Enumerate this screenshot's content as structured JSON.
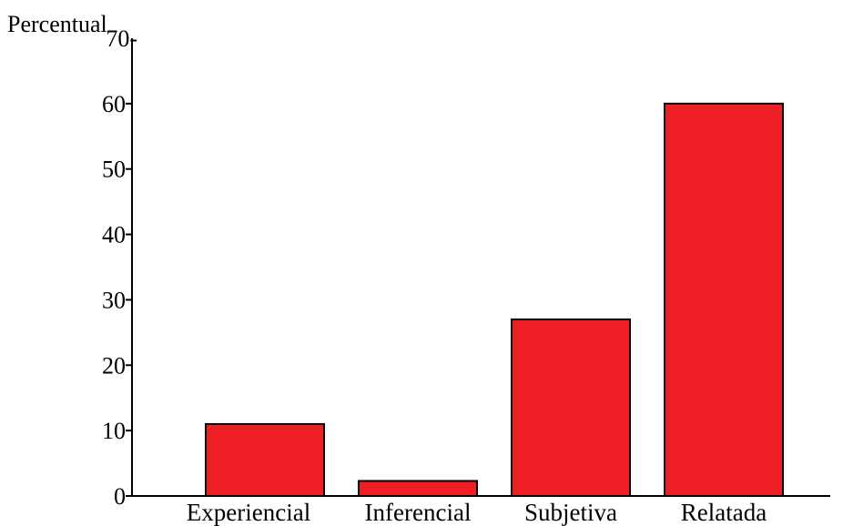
{
  "chart_data": {
    "type": "bar",
    "title": "",
    "ylabel": "Percentual",
    "xlabel": "",
    "categories": [
      "Experiencial",
      "Inferencial",
      "Subjetiva",
      "Relatada"
    ],
    "values": [
      11,
      2.3,
      27,
      60
    ],
    "ylim": [
      0,
      70
    ],
    "yticks": [
      0,
      10,
      20,
      30,
      40,
      50,
      60,
      70
    ],
    "ytick_labels": [
      "0",
      "10",
      "20",
      "30",
      "40",
      "50",
      "60",
      "70-"
    ],
    "bar_color": "#ee1f24",
    "bar_edge_color": "#000000",
    "grid": false,
    "legend": "none"
  }
}
